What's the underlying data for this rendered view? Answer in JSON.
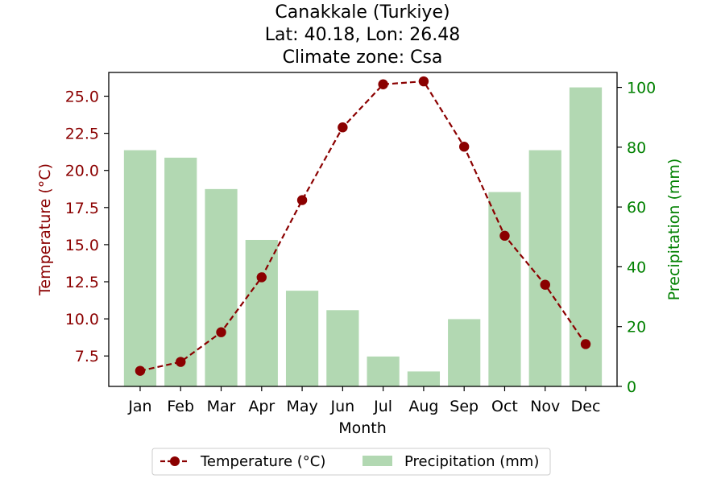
{
  "chart_data": {
    "type": "bar",
    "title_lines": [
      "Canakkale (Turkiye)",
      "Lat: 40.18, Lon: 26.48",
      "Climate zone: Csa"
    ],
    "xlabel": "Month",
    "ylabel_left": "Temperature (°C)",
    "ylabel_right": "Precipitation (mm)",
    "categories": [
      "Jan",
      "Feb",
      "Mar",
      "Apr",
      "May",
      "Jun",
      "Jul",
      "Aug",
      "Sep",
      "Oct",
      "Nov",
      "Dec"
    ],
    "series": [
      {
        "name": "Temperature (°C)",
        "type": "line",
        "axis": "left",
        "color": "#8b0000",
        "values": [
          6.5,
          7.1,
          9.1,
          12.8,
          18.0,
          22.9,
          25.8,
          26.0,
          21.6,
          15.6,
          12.3,
          8.3
        ]
      },
      {
        "name": "Precipitation (mm)",
        "type": "bar",
        "axis": "right",
        "color": "#b2d8b2",
        "values": [
          79,
          76.5,
          66,
          49,
          32,
          25.5,
          10,
          5,
          22.5,
          65,
          79,
          100
        ]
      }
    ],
    "ylim_left": [
      5.45,
      26.6
    ],
    "yticks_left": [
      7.5,
      10.0,
      12.5,
      15.0,
      17.5,
      20.0,
      22.5,
      25.0
    ],
    "ytick_labels_left": [
      "7.5",
      "10.0",
      "12.5",
      "15.0",
      "17.5",
      "20.0",
      "22.5",
      "25.0"
    ],
    "ylim_right": [
      0,
      105
    ],
    "yticks_right": [
      0,
      20,
      40,
      60,
      80,
      100
    ],
    "ytick_labels_right": [
      "0",
      "20",
      "40",
      "60",
      "80",
      "100"
    ],
    "left_axis_color": "#8b0000",
    "right_axis_color": "#008000",
    "grid": false,
    "legend_position": "bottom-center"
  }
}
